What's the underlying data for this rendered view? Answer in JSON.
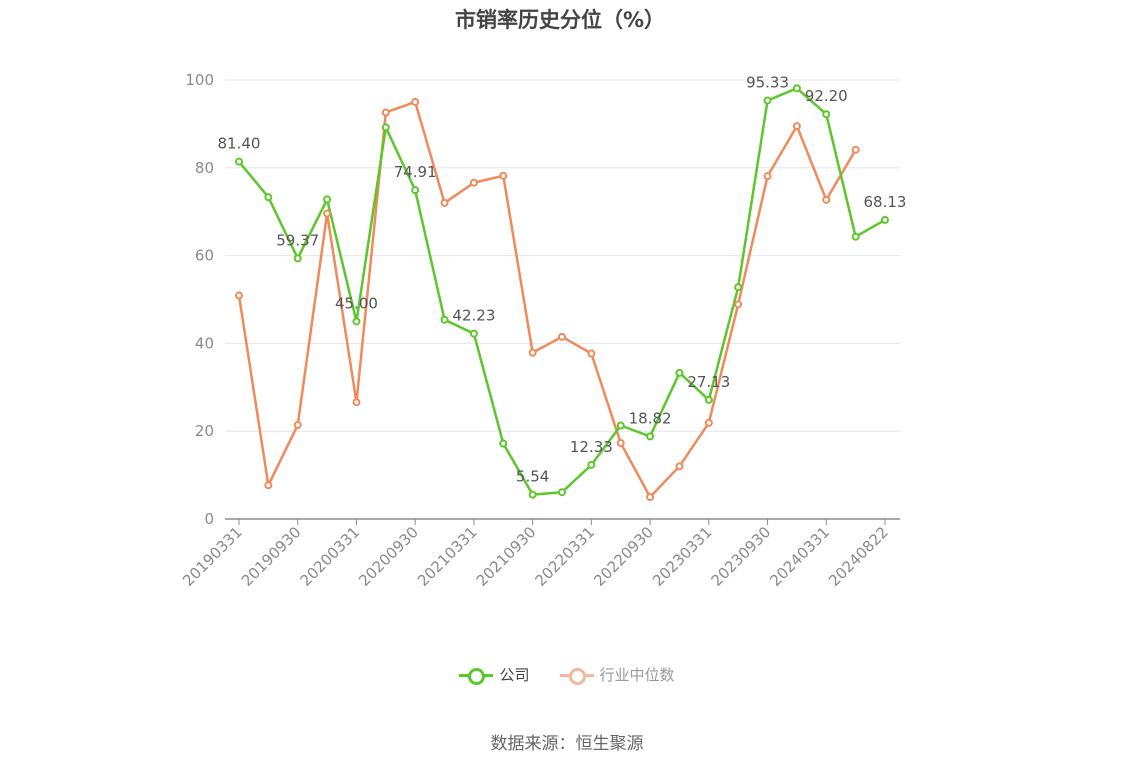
{
  "chart_data": {
    "type": "line",
    "title": "市销率历史分位（%）",
    "x": [
      "20190331",
      "20190630",
      "20190930",
      "20191231",
      "20200331",
      "20200630",
      "20200930",
      "20201231",
      "20210331",
      "20210630",
      "20210930",
      "20211231",
      "20220331",
      "20220630",
      "20220930",
      "20221231",
      "20230331",
      "20230630",
      "20230930",
      "20231231",
      "20240331",
      "20240630",
      "20240822"
    ],
    "x_tick_labels": [
      "20190331",
      "20190930",
      "20200331",
      "20200930",
      "20210331",
      "20210930",
      "20220331",
      "20220930",
      "20230331",
      "20230930",
      "20240331",
      "20240822"
    ],
    "ylim": [
      0,
      100
    ],
    "y_ticks": [
      0,
      20,
      40,
      60,
      80,
      100
    ],
    "grid": true,
    "legend_position": "bottom",
    "series": [
      {
        "name": "公司",
        "color": "#5cc72a",
        "values": [
          81.4,
          73.3,
          59.37,
          72.8,
          45.0,
          89.2,
          74.91,
          45.4,
          42.23,
          17.2,
          5.54,
          6.1,
          12.33,
          21.3,
          18.82,
          33.3,
          27.13,
          52.8,
          95.33,
          98.1,
          92.2,
          64.3,
          68.13
        ],
        "labels": {
          "0": "81.40",
          "2": "59.37",
          "4": "45.00",
          "6": "74.91",
          "8": "42.23",
          "10": "5.54",
          "12": "12.33",
          "14": "18.82",
          "16": "27.13",
          "18": "95.33",
          "20": "92.20",
          "22": "68.13"
        }
      },
      {
        "name": "行业中位数",
        "color": "#f08a5a",
        "values": [
          50.9,
          7.7,
          21.4,
          69.6,
          26.6,
          92.6,
          95.0,
          72.0,
          76.6,
          78.2,
          37.9,
          41.5,
          37.7,
          17.3,
          5.0,
          12.0,
          21.9,
          48.9,
          78.1,
          89.5,
          72.7,
          84.1,
          null
        ]
      }
    ]
  },
  "legend": {
    "company_label": "公司",
    "industry_label": "行业中位数"
  },
  "source_text": "数据来源：恒生聚源"
}
